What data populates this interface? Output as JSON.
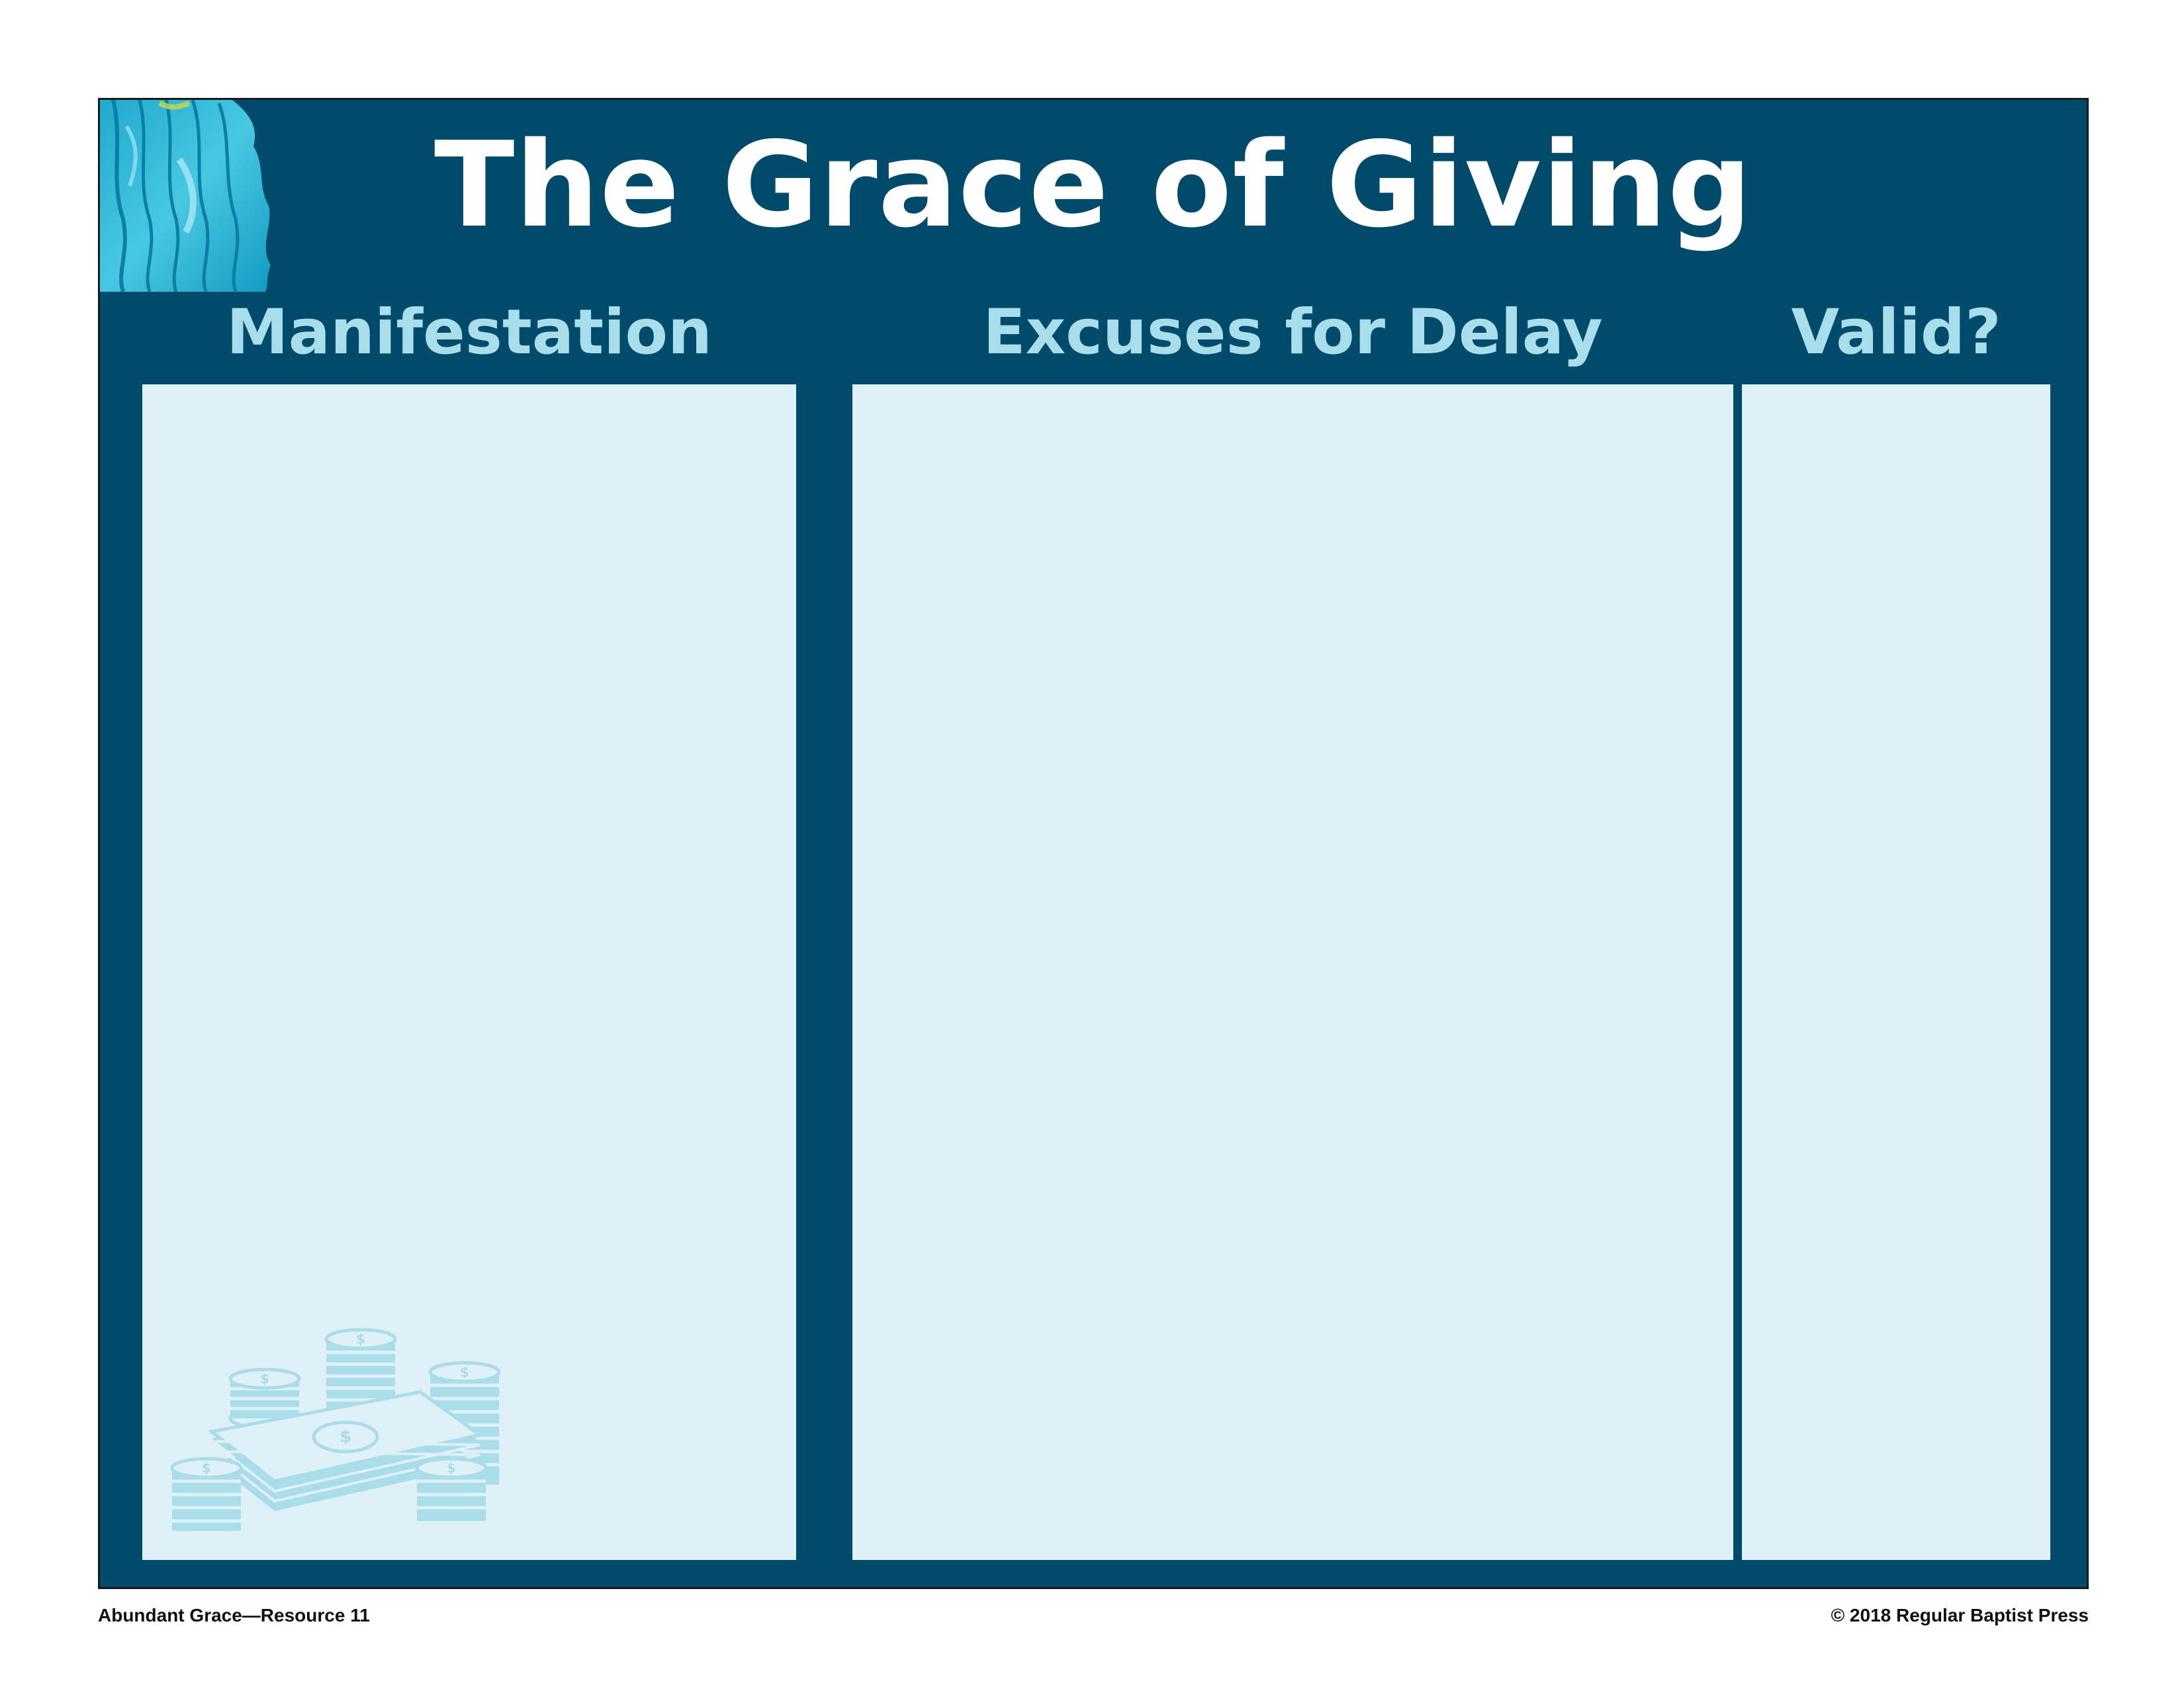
{
  "title": "The Grace of Giving",
  "columns": [
    {
      "heading": "Manifestation"
    },
    {
      "heading": "Excuses for Delay"
    },
    {
      "heading": "Valid?"
    }
  ],
  "footer": {
    "left": "Abundant Grace—Resource 11",
    "right": "© 2018 Regular Baptist Press"
  },
  "colors": {
    "frame": "#004a6b",
    "panel": "#dff1f7",
    "heading": "#a9dde9",
    "title": "#ffffff"
  },
  "icons": {
    "corner": "watercolor-swirl-icon",
    "money": "money-stack-icon",
    "coin_symbol": "$"
  }
}
